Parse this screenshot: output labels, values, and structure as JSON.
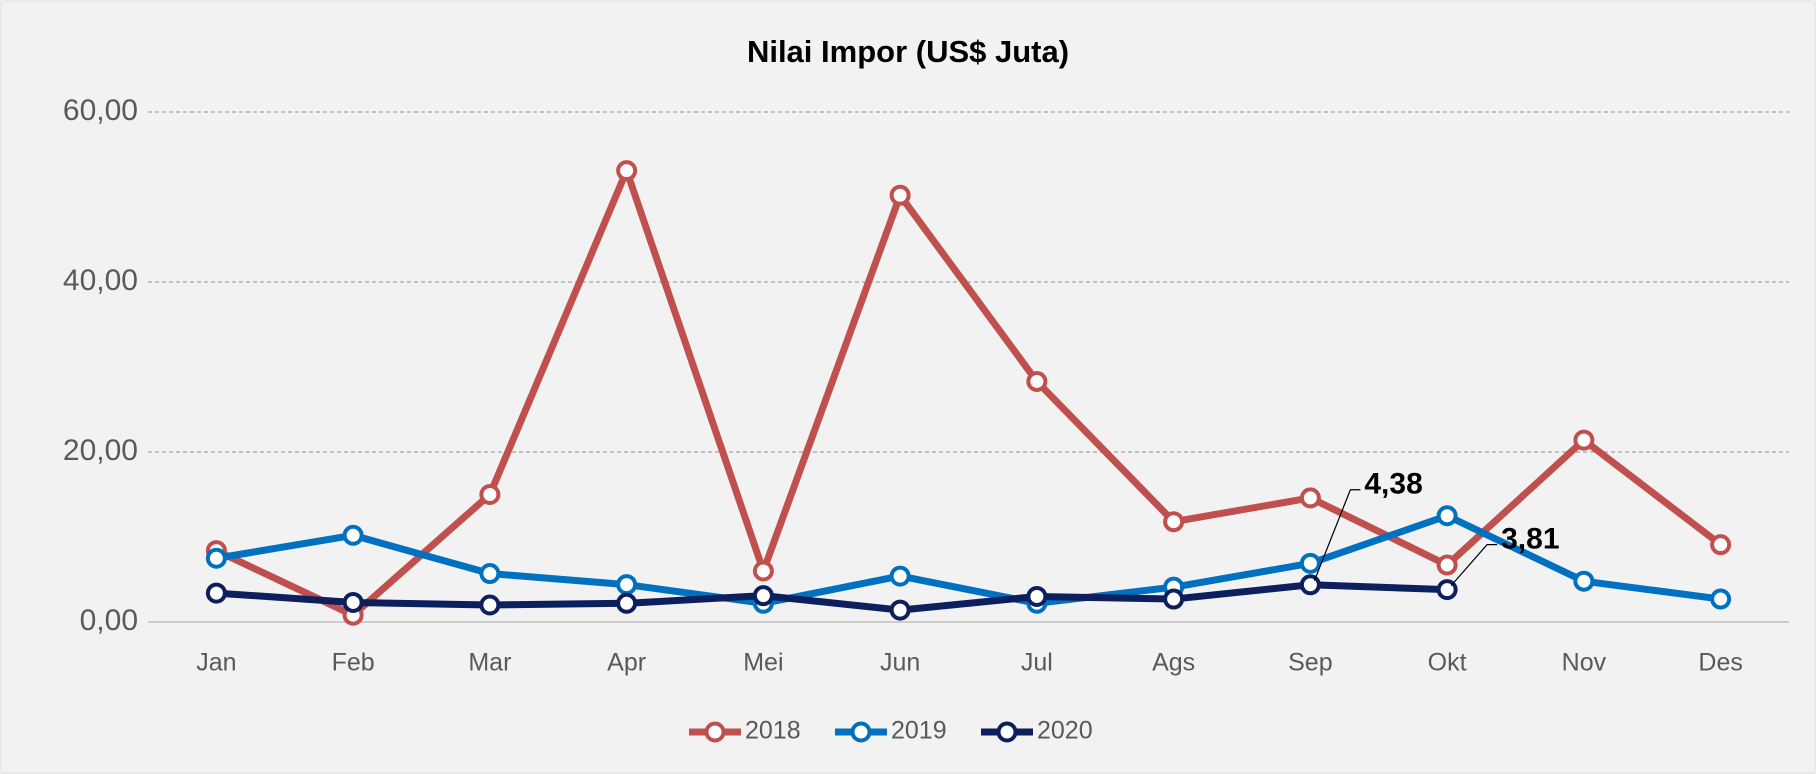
{
  "chart_data": {
    "type": "line",
    "title": "Nilai Impor (US$ Juta)",
    "categories": [
      "Jan",
      "Feb",
      "Mar",
      "Apr",
      "Mei",
      "Jun",
      "Jul",
      "Ags",
      "Sep",
      "Okt",
      "Nov",
      "Des"
    ],
    "series": [
      {
        "name": "2018",
        "color": "#c0504d",
        "values": [
          8.4,
          0.8,
          15.0,
          53.1,
          6.0,
          50.2,
          28.3,
          11.8,
          14.6,
          6.7,
          21.4,
          9.1
        ]
      },
      {
        "name": "2019",
        "color": "#0070c0",
        "values": [
          7.5,
          10.2,
          5.7,
          4.4,
          2.2,
          5.4,
          2.2,
          4.1,
          6.9,
          12.5,
          4.8,
          2.7
        ]
      },
      {
        "name": "2020",
        "color": "#0d1f5c",
        "values": [
          3.4,
          2.3,
          2.0,
          2.2,
          3.1,
          1.4,
          3.0,
          2.7,
          4.38,
          3.81,
          null,
          null
        ],
        "value_labels": [
          null,
          null,
          null,
          null,
          null,
          null,
          null,
          null,
          "4,38",
          "3,81",
          null,
          null
        ]
      }
    ],
    "ylim": [
      0,
      60
    ],
    "yticks": [
      {
        "value": 0,
        "label": "0,00"
      },
      {
        "value": 20,
        "label": "20,00"
      },
      {
        "value": 40,
        "label": "40,00"
      },
      {
        "value": 60,
        "label": "60,00"
      }
    ],
    "grid": true,
    "legend": "bottom"
  }
}
